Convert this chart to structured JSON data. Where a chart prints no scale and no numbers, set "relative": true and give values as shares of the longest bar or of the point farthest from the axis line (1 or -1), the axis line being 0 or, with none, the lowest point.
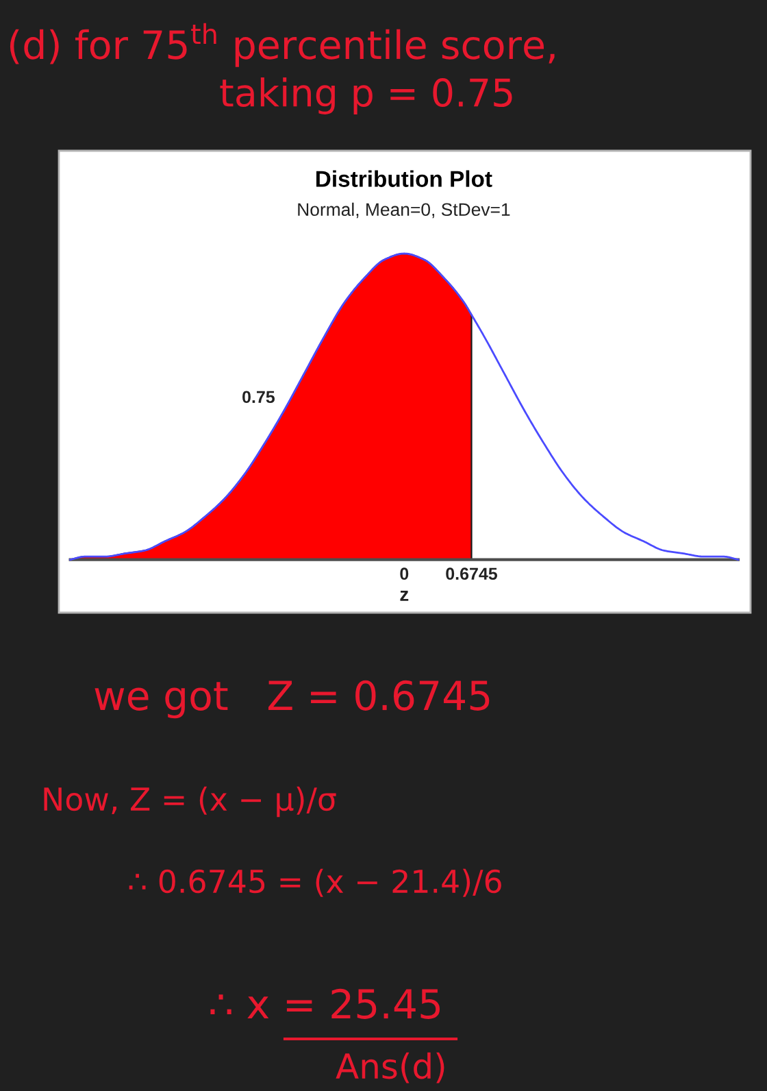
{
  "chart_data": {
    "type": "area",
    "title": "Distribution Plot",
    "subtitle": "Normal, Mean=0, StDev=1",
    "xlabel": "z",
    "relative": true,
    "xlim": [
      -3.35,
      3.35
    ],
    "xticks": [
      0,
      0.6745
    ],
    "series": [
      {
        "color": "#ff0000",
        "x": [
          -3.35,
          -3.2,
          -3.0,
          -2.8,
          -2.6,
          -2.4,
          -2.2,
          -2.0,
          -1.8,
          -1.6,
          -1.4,
          -1.2,
          -1.0,
          -0.8,
          -0.6,
          -0.4,
          -0.2,
          0,
          0.2,
          0.4,
          0.6,
          0.6745
        ],
        "values": [
          0.0,
          0.01,
          0.01,
          0.02,
          0.03,
          0.06,
          0.09,
          0.14,
          0.2,
          0.28,
          0.38,
          0.49,
          0.61,
          0.73,
          0.84,
          0.92,
          0.98,
          1,
          0.98,
          0.92,
          0.84,
          0.8
        ]
      },
      {
        "type": "line",
        "color": "#4b4bff",
        "x": [
          -3.35,
          -3.2,
          -3.0,
          -2.8,
          -2.6,
          -2.4,
          -2.2,
          -2.0,
          -1.8,
          -1.6,
          -1.4,
          -1.2,
          -1.0,
          -0.8,
          -0.6,
          -0.4,
          -0.2,
          0,
          0.2,
          0.4,
          0.6,
          0.6745,
          0.8,
          1.0,
          1.2,
          1.4,
          1.6,
          1.8,
          2.0,
          2.2,
          2.4,
          2.6,
          2.8,
          3.0,
          3.2,
          3.35
        ],
        "values": [
          0.0,
          0.01,
          0.01,
          0.02,
          0.03,
          0.06,
          0.09,
          0.14,
          0.2,
          0.28,
          0.38,
          0.49,
          0.61,
          0.73,
          0.84,
          0.92,
          0.98,
          1,
          0.98,
          0.92,
          0.84,
          0.8,
          0.73,
          0.61,
          0.49,
          0.38,
          0.28,
          0.2,
          0.14,
          0.09,
          0.06,
          0.03,
          0.02,
          0.01,
          0.01,
          0.0
        ]
      }
    ],
    "annotations": [
      "(d) for 75$^{th}$ percentile score,",
      "taking p = 0.75",
      "0.75",
      "we got   Z = 0.6745",
      "Now, Z = (x − μ)/σ",
      "∴ 0.6745 = (x − 21.4)/6",
      "∴ x = 25.45",
      "Ans(d)"
    ]
  }
}
